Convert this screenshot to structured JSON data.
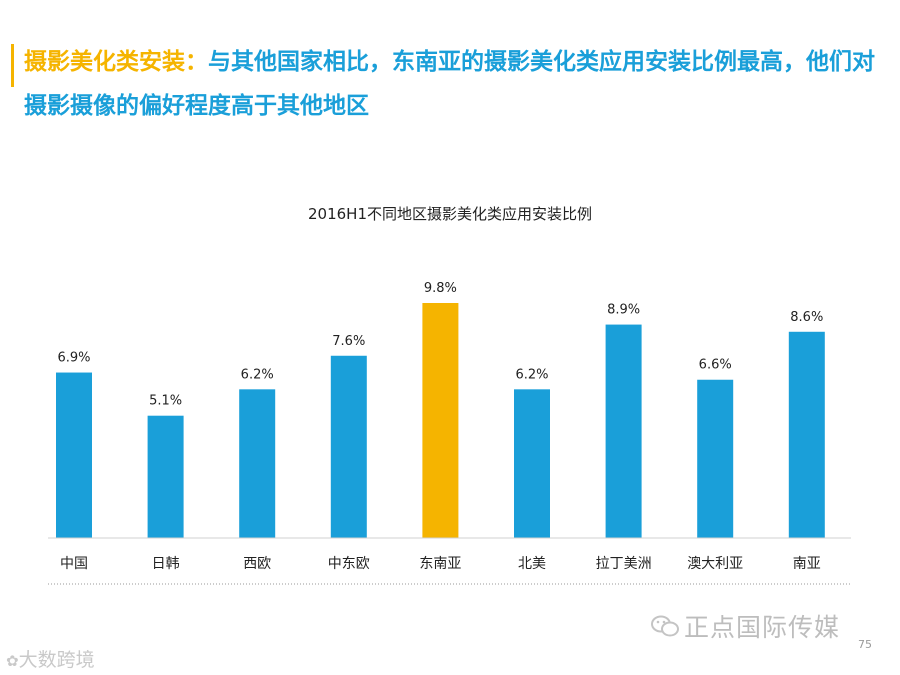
{
  "headline": {
    "highlight": "摄影美化类安装",
    "separator": "：",
    "text": "与其他国家相比，东南亚的摄影美化类应用安装比例最高，他们对摄影摄像的偏好程度高于其他地区"
  },
  "colors": {
    "bar": "#1a9fd9",
    "highlight_bar": "#f5b400",
    "headline_text": "#1a9fd9",
    "headline_highlight": "#f5b400"
  },
  "chart_data": {
    "type": "bar",
    "title": "2016H1不同地区摄影美化类应用安装比例",
    "categories": [
      "中国",
      "日韩",
      "西欧",
      "中东欧",
      "东南亚",
      "北美",
      "拉丁美洲",
      "澳大利亚",
      "南亚"
    ],
    "values": [
      6.9,
      5.1,
      6.2,
      7.6,
      9.8,
      6.2,
      8.9,
      6.6,
      8.6
    ],
    "data_labels": [
      "6.9%",
      "5.1%",
      "6.2%",
      "7.6%",
      "9.8%",
      "6.2%",
      "8.9%",
      "6.6%",
      "8.6%"
    ],
    "highlight_index": 4,
    "ylim": [
      0,
      9.8
    ],
    "grid": false,
    "legend": "none"
  },
  "watermark": {
    "text": "正点国际传媒",
    "icon": "wechat-icon"
  },
  "page_number": "75",
  "corner_logo": {
    "text": "大数跨境",
    "icon": "logo-icon"
  }
}
